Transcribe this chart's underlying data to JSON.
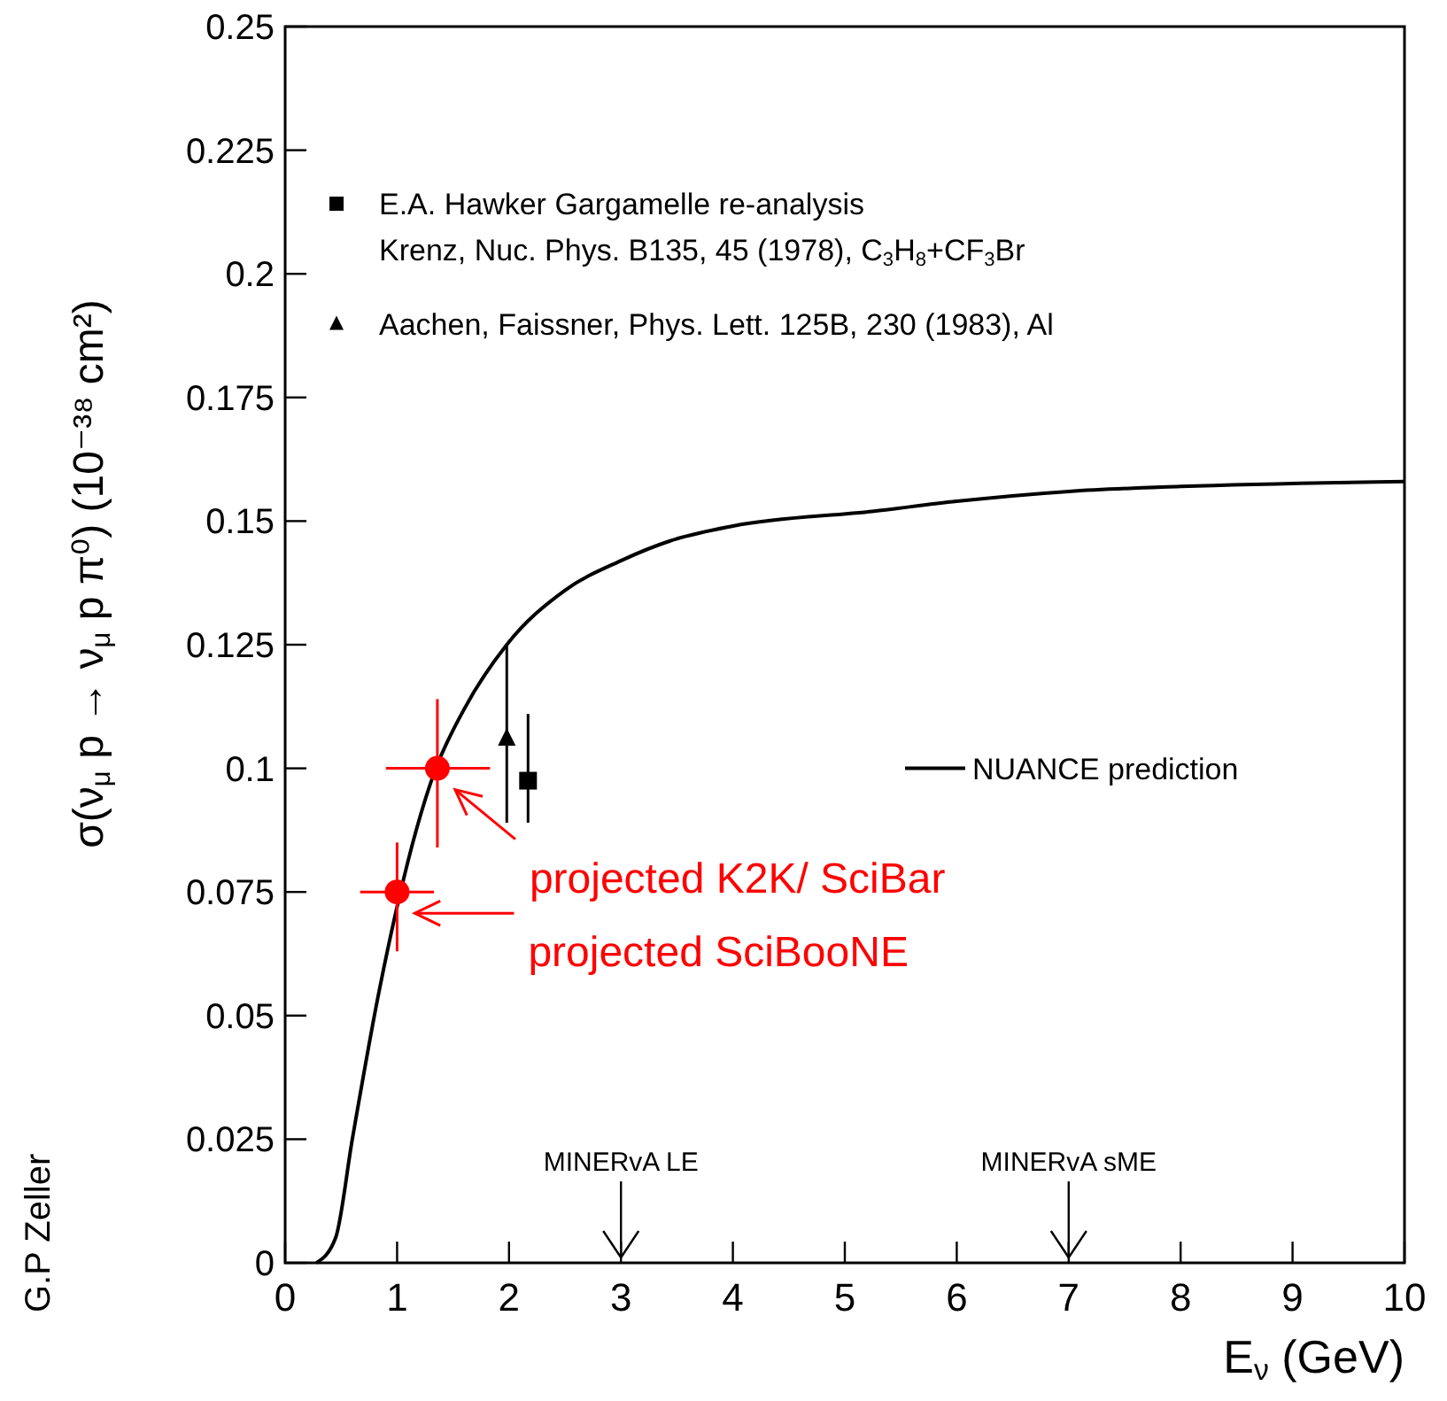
{
  "chart_data": {
    "type": "line",
    "xlabel": "E$_{ν}$ (GeV)",
    "ylabel": "σ(ν$_{μ}$ p → ν$_{μ}$ p π⁰) (10⁻³⁸ cm²)",
    "xlim": [
      0,
      10
    ],
    "xticks": [
      0,
      1,
      2,
      3,
      4,
      5,
      6,
      7,
      8,
      9,
      10
    ],
    "ylim": [
      0,
      0.25
    ],
    "yticks": [
      0,
      0.025,
      0.05,
      0.075,
      0.1,
      0.125,
      0.15,
      0.175,
      0.2,
      0.225,
      0.25
    ],
    "grid": false,
    "legend": "top left",
    "series": [
      {
        "name": "NUANCE prediction",
        "color": "#000000",
        "marker": "none",
        "line_style": "solid",
        "x": [
          0.28,
          0.45,
          0.6,
          0.84,
          1.33,
          1.6,
          1.98,
          2.5,
          3,
          3.44,
          4,
          5.26,
          6,
          7,
          8,
          10
        ],
        "values": [
          0,
          0.005,
          0.025,
          0.055,
          0.099,
          0.112,
          0.125,
          0.136,
          0.142,
          0.146,
          0.149,
          0.152,
          0.154,
          0.156,
          0.157,
          0.158
        ]
      },
      {
        "name": "E.A. Hawker Gargamelle re-analysis\nKrenz, Nuc. Phys. B135, 45 (1978), C$_{3}$H$_{8}$+CF$_{3}$Br",
        "type": "scatter",
        "color": "#000000",
        "marker": "square",
        "x": [
          2.17
        ],
        "values": [
          0.0975
        ],
        "errors": [
          [
            0.089,
            0.111
          ]
        ]
      },
      {
        "name": "Aachen, Faissner, Phys. Lett. 125B, 230 (1983), Al",
        "type": "scatter",
        "color": "#000000",
        "marker": "triangle",
        "x": [
          1.98
        ],
        "values": [
          0.106
        ],
        "errors": [
          [
            0.089,
            0.125
          ]
        ]
      },
      {
        "name": "projected K2K/ SciBar",
        "type": "scatter",
        "color": "#ff0000",
        "marker": "circle",
        "x": [
          1.36
        ],
        "values": [
          0.1
        ],
        "errors": [
          [
            0.084,
            0.114
          ]
        ],
        "xerrors": [
          [
            0.9,
            1.83
          ]
        ]
      },
      {
        "name": "projected SciBooNE",
        "type": "scatter",
        "color": "#ff0000",
        "marker": "circle",
        "x": [
          1.0
        ],
        "values": [
          0.075
        ],
        "errors": [
          [
            0.063,
            0.085
          ]
        ],
        "xerrors": [
          [
            0.67,
            1.33
          ]
        ]
      }
    ],
    "annotations": [
      "MINERvA LE",
      "MINERvA sME",
      "G.P Zeller"
    ]
  }
}
